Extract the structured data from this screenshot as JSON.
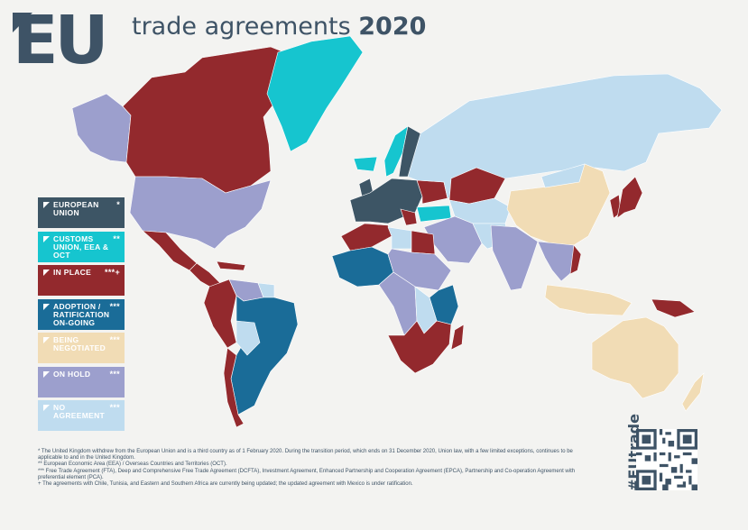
{
  "header": {
    "logo_text": "EU",
    "title": "trade agreements",
    "year": "2020"
  },
  "colors": {
    "european_union": "#3d5565",
    "customs_union": "#16c5cf",
    "in_place": "#93292d",
    "adoption": "#1a6c98",
    "negotiated": "#f1dcb5",
    "on_hold": "#9c9fcd",
    "no_agreement": "#bfdcef"
  },
  "legend": [
    {
      "key": "european_union",
      "label": "European Union",
      "mark": "*"
    },
    {
      "key": "customs_union",
      "label": "Customs Union, EEA & OCT",
      "mark": "**"
    },
    {
      "key": "in_place",
      "label": "In Place",
      "mark": "***+"
    },
    {
      "key": "adoption",
      "label": "Adoption / Ratification On-Going",
      "mark": "***"
    },
    {
      "key": "negotiated",
      "label": "Being Negotiated",
      "mark": "***"
    },
    {
      "key": "on_hold",
      "label": "On Hold",
      "mark": "***"
    },
    {
      "key": "no_agreement",
      "label": "No Agreement",
      "mark": "***"
    }
  ],
  "footnotes": [
    "* The United Kingdom withdrew from the European Union and is a third country as of 1 February 2020. During the transition period, which ends on 31 December 2020, Union law, with a few limited exceptions, continues to be applicable to and in the United Kingdom.",
    "** European Economic Area (EEA) / Overseas Countries and Territories (OCT).",
    "*** Free Trade Agreement (FTA), Deep and Comprehensive Free Trade Agreement (DCFTA), Investment Agreement, Enhanced Partnership and Cooperation Agreement (EPCA), Partnership and Co-operation Agreement with preferential element (PCA).",
    "+ The agreements with Chile, Tunisia, and Eastern and Southern Africa are currently being updated; the updated agreement with Mexico is under ratification."
  ],
  "hashtag": "#EUtrade",
  "map": {
    "regions": [
      {
        "name": "alaska",
        "status": "on_hold"
      },
      {
        "name": "canada",
        "status": "in_place"
      },
      {
        "name": "greenland",
        "status": "customs_union"
      },
      {
        "name": "usa",
        "status": "on_hold"
      },
      {
        "name": "mexico",
        "status": "in_place"
      },
      {
        "name": "central-america",
        "status": "in_place"
      },
      {
        "name": "caribbean",
        "status": "in_place"
      },
      {
        "name": "colombia-peru-ecuador",
        "status": "in_place"
      },
      {
        "name": "venezuela",
        "status": "on_hold"
      },
      {
        "name": "guiana",
        "status": "no_agreement"
      },
      {
        "name": "brazil-mercosur",
        "status": "adoption"
      },
      {
        "name": "bolivia",
        "status": "no_agreement"
      },
      {
        "name": "chile",
        "status": "in_place"
      },
      {
        "name": "iceland",
        "status": "customs_union"
      },
      {
        "name": "scandinavia",
        "status": "customs_union"
      },
      {
        "name": "finland-sweden",
        "status": "european_union"
      },
      {
        "name": "uk",
        "status": "european_union"
      },
      {
        "name": "eu-mainland",
        "status": "european_union"
      },
      {
        "name": "ukraine-belarus",
        "status": "in_place"
      },
      {
        "name": "balkans",
        "status": "in_place"
      },
      {
        "name": "turkey",
        "status": "customs_union"
      },
      {
        "name": "russia",
        "status": "no_agreement"
      },
      {
        "name": "kazakhstan",
        "status": "in_place"
      },
      {
        "name": "central-asia",
        "status": "no_agreement"
      },
      {
        "name": "middle-east",
        "status": "on_hold"
      },
      {
        "name": "iran",
        "status": "no_agreement"
      },
      {
        "name": "maghreb",
        "status": "in_place"
      },
      {
        "name": "libya",
        "status": "no_agreement"
      },
      {
        "name": "egypt",
        "status": "in_place"
      },
      {
        "name": "west-africa",
        "status": "adoption"
      },
      {
        "name": "sahel",
        "status": "on_hold"
      },
      {
        "name": "central-africa",
        "status": "on_hold"
      },
      {
        "name": "east-africa",
        "status": "adoption"
      },
      {
        "name": "drc",
        "status": "no_agreement"
      },
      {
        "name": "southern-africa",
        "status": "in_place"
      },
      {
        "name": "madagascar",
        "status": "in_place"
      },
      {
        "name": "india",
        "status": "on_hold"
      },
      {
        "name": "china",
        "status": "negotiated"
      },
      {
        "name": "mongolia",
        "status": "no_agreement"
      },
      {
        "name": "korea",
        "status": "in_place"
      },
      {
        "name": "japan",
        "status": "in_place"
      },
      {
        "name": "southeast-asia",
        "status": "on_hold"
      },
      {
        "name": "vietnam",
        "status": "in_place"
      },
      {
        "name": "indonesia",
        "status": "negotiated"
      },
      {
        "name": "papua",
        "status": "in_place"
      },
      {
        "name": "australia",
        "status": "negotiated"
      },
      {
        "name": "new-zealand",
        "status": "negotiated"
      }
    ]
  }
}
